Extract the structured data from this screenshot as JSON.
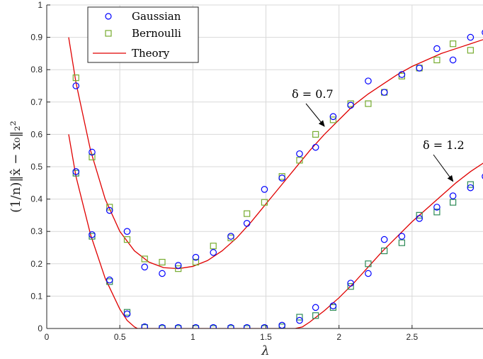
{
  "chart_data": {
    "type": "scatter",
    "title": "",
    "xlabel": "λ",
    "ylabel": "(1/n)‖x̂ − x₀‖₂²",
    "xlim": [
      0,
      3
    ],
    "ylim": [
      0,
      1
    ],
    "xticks": [
      "0",
      "0.5",
      "1",
      "1.5",
      "2",
      "2.5",
      "3"
    ],
    "yticks": [
      "0",
      "0.1",
      "0.2",
      "0.3",
      "0.4",
      "0.5",
      "0.6",
      "0.7",
      "0.8",
      "0.9",
      "1"
    ],
    "grid": true,
    "legend": {
      "placement": "top-left",
      "entries": [
        "Gaussian",
        "Bernoulli",
        "Theory"
      ]
    },
    "colors": {
      "gaussian": "#0000ff",
      "bernoulli_07": "#77ac30",
      "bernoulli_12": "#2e8b57",
      "theory": "#e00000",
      "grid": "#d9d9d9"
    },
    "annotations": [
      {
        "text": "δ = 0.7",
        "arrow_to": [
          1.9,
          0.625
        ]
      },
      {
        "text": "δ = 1.2",
        "arrow_to": [
          2.78,
          0.455
        ]
      }
    ],
    "x": [
      0.2,
      0.31,
      0.43,
      0.55,
      0.67,
      0.79,
      0.9,
      1.02,
      1.14,
      1.26,
      1.37,
      1.49,
      1.61,
      1.73,
      1.84,
      1.96,
      2.08,
      2.2,
      2.31,
      2.43,
      2.55,
      2.67,
      2.78,
      2.9,
      3.0
    ],
    "series": [
      {
        "name": "Gaussian",
        "group": "δ = 0.7",
        "marker": "circle",
        "values": [
          0.75,
          0.545,
          0.365,
          0.3,
          0.19,
          0.17,
          0.195,
          0.22,
          0.235,
          0.285,
          0.325,
          0.43,
          0.465,
          0.54,
          0.56,
          0.655,
          0.69,
          0.765,
          0.73,
          0.785,
          0.805,
          0.865,
          0.83,
          0.9,
          0.915
        ]
      },
      {
        "name": "Bernoulli",
        "group": "δ = 0.7",
        "marker": "square",
        "values": [
          0.775,
          0.53,
          0.375,
          0.275,
          0.215,
          0.205,
          0.185,
          0.205,
          0.255,
          0.28,
          0.355,
          0.39,
          0.47,
          0.52,
          0.6,
          0.645,
          0.695,
          0.695,
          0.73,
          0.78,
          0.805,
          0.83,
          0.88,
          0.86,
          null
        ]
      },
      {
        "name": "Gaussian",
        "group": "δ = 1.2",
        "marker": "circle",
        "values": [
          0.485,
          0.29,
          0.15,
          0.045,
          0.005,
          0.003,
          0.003,
          0.003,
          0.003,
          0.003,
          0.003,
          0.003,
          0.01,
          0.025,
          0.065,
          0.07,
          0.14,
          0.17,
          0.275,
          0.285,
          0.34,
          0.375,
          0.41,
          0.435,
          0.47
        ]
      },
      {
        "name": "Bernoulli",
        "group": "δ = 1.2",
        "marker": "square",
        "values": [
          0.48,
          0.285,
          0.145,
          0.05,
          0.003,
          0.0,
          0.0,
          0.0,
          0.0,
          0.0,
          0.0,
          0.0,
          0.005,
          0.035,
          0.04,
          0.065,
          0.13,
          0.2,
          0.24,
          0.265,
          0.35,
          0.36,
          0.39,
          0.445,
          null
        ]
      },
      {
        "name": "Theory",
        "group": "δ = 0.7",
        "marker": "line",
        "x": [
          0.15,
          0.2,
          0.3,
          0.4,
          0.5,
          0.6,
          0.7,
          0.8,
          0.9,
          1.0,
          1.1,
          1.2,
          1.3,
          1.4,
          1.5,
          1.6,
          1.7,
          1.8,
          1.9,
          2.0,
          2.1,
          2.2,
          2.3,
          2.4,
          2.5,
          2.6,
          2.7,
          2.8,
          2.9,
          3.0
        ],
        "values": [
          0.9,
          0.76,
          0.55,
          0.4,
          0.3,
          0.24,
          0.205,
          0.188,
          0.185,
          0.192,
          0.21,
          0.24,
          0.28,
          0.33,
          0.385,
          0.44,
          0.495,
          0.55,
          0.6,
          0.645,
          0.69,
          0.725,
          0.755,
          0.785,
          0.81,
          0.83,
          0.85,
          0.865,
          0.88,
          0.895
        ]
      },
      {
        "name": "Theory",
        "group": "δ = 1.2",
        "marker": "line",
        "x": [
          0.15,
          0.2,
          0.3,
          0.4,
          0.5,
          0.55,
          0.6,
          0.62,
          0.7,
          0.8,
          1.0,
          1.2,
          1.4,
          1.6,
          1.7,
          1.75,
          1.8,
          1.9,
          2.0,
          2.1,
          2.2,
          2.3,
          2.4,
          2.5,
          2.6,
          2.7,
          2.8,
          2.9,
          3.0
        ],
        "values": [
          0.6,
          0.47,
          0.29,
          0.155,
          0.06,
          0.025,
          0.005,
          0.0,
          0.0,
          0.0,
          0.0,
          0.0,
          0.0,
          0.0,
          0.0,
          0.005,
          0.02,
          0.055,
          0.095,
          0.14,
          0.19,
          0.24,
          0.285,
          0.33,
          0.37,
          0.41,
          0.45,
          0.485,
          0.515
        ]
      }
    ]
  }
}
